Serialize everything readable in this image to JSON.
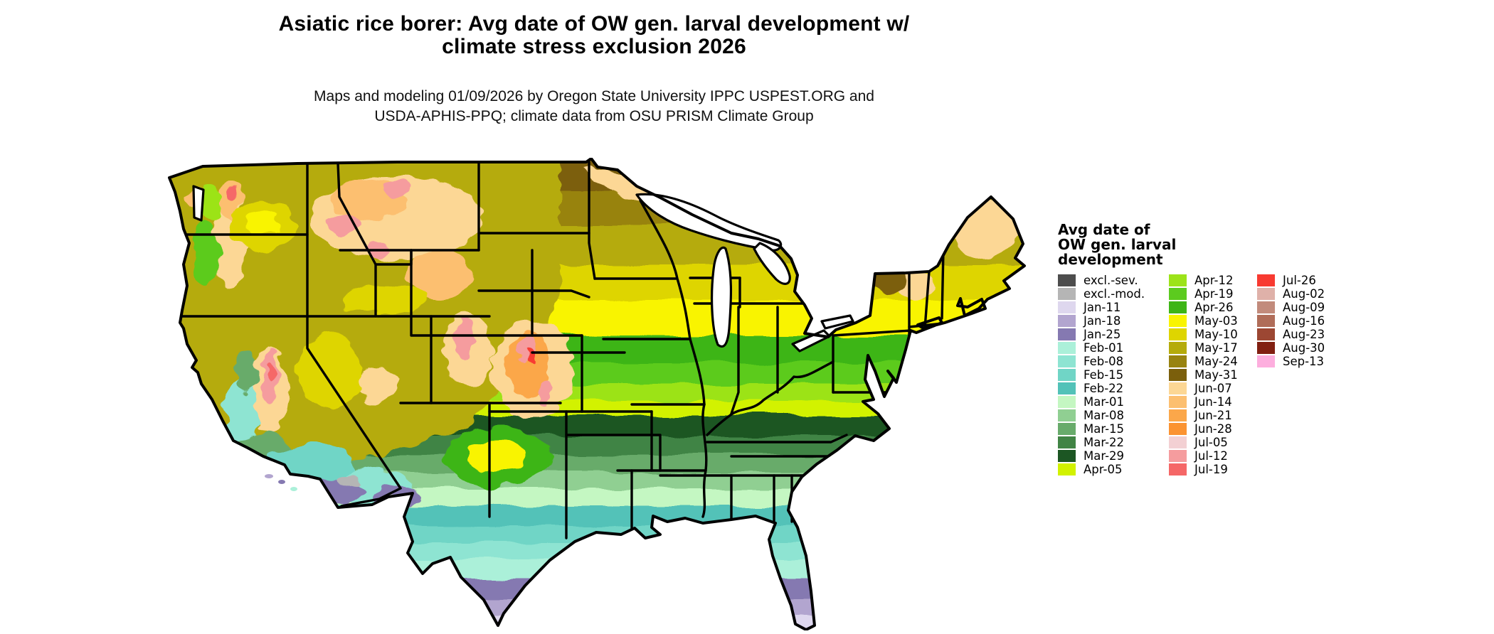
{
  "title": {
    "line1": "Asiatic rice borer: Avg date of OW gen. larval development w/",
    "line2": "climate stress exclusion 2026"
  },
  "subtitle": {
    "line1": "Maps and modeling 01/09/2026 by Oregon State University IPPC USPEST.ORG and",
    "line2": "USDA-APHIS-PPQ; climate data from OSU PRISM Climate Group"
  },
  "legend": {
    "title_lines": [
      "Avg date of",
      "OW gen. larval",
      "development"
    ],
    "columns": [
      [
        {
          "label": "excl.-sev.",
          "color": "#4d4d4d"
        },
        {
          "label": "excl.-mod.",
          "color": "#b5b5b5"
        },
        {
          "label": "Jan-11",
          "color": "#ded7ee"
        },
        {
          "label": "Jan-18",
          "color": "#b2a5cf"
        },
        {
          "label": "Jan-25",
          "color": "#8579b1"
        },
        {
          "label": "Feb-01",
          "color": "#abf0d9"
        },
        {
          "label": "Feb-08",
          "color": "#8ee4d2"
        },
        {
          "label": "Feb-15",
          "color": "#70d5c6"
        },
        {
          "label": "Feb-22",
          "color": "#52c2b8"
        },
        {
          "label": "Mar-01",
          "color": "#c4f7c2"
        },
        {
          "label": "Mar-08",
          "color": "#90cf92"
        },
        {
          "label": "Mar-15",
          "color": "#68ab6b"
        },
        {
          "label": "Mar-22",
          "color": "#418445"
        },
        {
          "label": "Mar-29",
          "color": "#1c5623"
        },
        {
          "label": "Apr-05",
          "color": "#d2f200"
        }
      ],
      [
        {
          "label": "Apr-12",
          "color": "#9ce319"
        },
        {
          "label": "Apr-19",
          "color": "#5ccb1f"
        },
        {
          "label": "Apr-26",
          "color": "#3eb516"
        },
        {
          "label": "May-03",
          "color": "#f9f400"
        },
        {
          "label": "May-10",
          "color": "#ded500"
        },
        {
          "label": "May-17",
          "color": "#b5ab0b"
        },
        {
          "label": "May-24",
          "color": "#988310"
        },
        {
          "label": "May-31",
          "color": "#7b5f0c"
        },
        {
          "label": "Jun-07",
          "color": "#fcd795"
        },
        {
          "label": "Jun-14",
          "color": "#fcbf70"
        },
        {
          "label": "Jun-21",
          "color": "#fba74a"
        },
        {
          "label": "Jun-28",
          "color": "#fb9331"
        },
        {
          "label": "Jul-05",
          "color": "#f3d0d3"
        },
        {
          "label": "Jul-12",
          "color": "#f59c9e"
        },
        {
          "label": "Jul-19",
          "color": "#f56767"
        }
      ],
      [
        {
          "label": "Jul-26",
          "color": "#f83a31"
        },
        {
          "label": "Aug-02",
          "color": "#dfb1a9"
        },
        {
          "label": "Aug-09",
          "color": "#c28b7c"
        },
        {
          "label": "Aug-16",
          "color": "#b06d59"
        },
        {
          "label": "Aug-23",
          "color": "#9c4733"
        },
        {
          "label": "Aug-30",
          "color": "#811f11"
        },
        {
          "label": "Sep-13",
          "color": "#fdaede"
        }
      ]
    ]
  },
  "map": {
    "area": "contiguous United States choropleth raster",
    "band_order_north_to_south": [
      "May-31",
      "May-24",
      "May-17",
      "May-10",
      "May-03",
      "Apr-26",
      "Apr-19",
      "Apr-12",
      "Apr-05",
      "Mar-29",
      "Mar-22",
      "Mar-15",
      "Mar-08",
      "Mar-01",
      "Feb-22",
      "Feb-15",
      "Feb-08",
      "Feb-01",
      "Jan-25",
      "Jan-18",
      "Jan-11"
    ],
    "border_color": "#000000",
    "water_color": "#ffffff"
  }
}
